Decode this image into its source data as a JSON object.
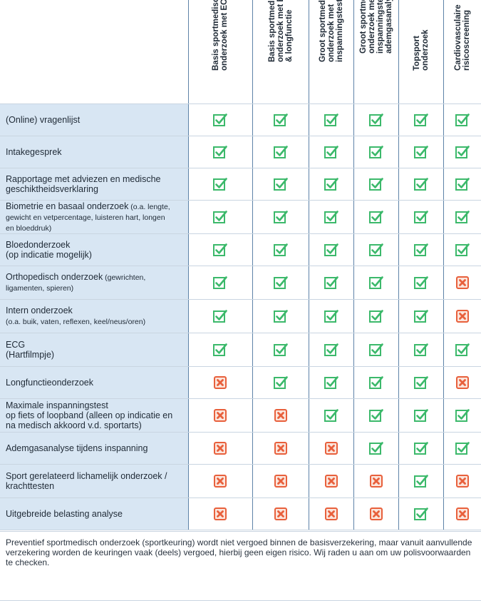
{
  "columns": [
    "Basis sportmedisch\nonderzoek met ECG",
    "Basis sportmedisch +\nonderzoek met ECG\n& longfunctie",
    "Groot sportmedisch\nonderzoek met\ninspanningstest",
    "Groot sportmedisch +\nonderzoek met\ninspanningstest en\nademgasanalyse",
    "Topsport\nonderzoek",
    "Cardiovasculaire\nrisicoscreening"
  ],
  "rows": [
    {
      "label": "(Online) vragenlijst",
      "sub": "",
      "values": [
        "yes",
        "yes",
        "yes",
        "yes",
        "yes",
        "yes"
      ]
    },
    {
      "label": "Intakegesprek",
      "sub": "",
      "values": [
        "yes",
        "yes",
        "yes",
        "yes",
        "yes",
        "yes"
      ]
    },
    {
      "label": "Rapportage met adviezen en medische\ngeschiktheidsverklaring",
      "sub": "",
      "values": [
        "yes",
        "yes",
        "yes",
        "yes",
        "yes",
        "yes"
      ]
    },
    {
      "label": "Biometrie en basaal onderzoek",
      "sub": " (o.a. lengte,\ngewicht en vetpercentage, luisteren hart, longen\nen bloeddruk)",
      "values": [
        "yes",
        "yes",
        "yes",
        "yes",
        "yes",
        "yes"
      ]
    },
    {
      "label": "Bloedonderzoek\n(op indicatie mogelijk)",
      "sub": "",
      "values": [
        "yes",
        "yes",
        "yes",
        "yes",
        "yes",
        "yes"
      ]
    },
    {
      "label": "Orthopedisch onderzoek",
      "sub": " (gewrichten,\nligamenten, spieren)",
      "values": [
        "yes",
        "yes",
        "yes",
        "yes",
        "yes",
        "no"
      ]
    },
    {
      "label": "Intern onderzoek",
      "sub": "\n(o.a. buik, vaten, reflexen, keel/neus/oren)",
      "values": [
        "yes",
        "yes",
        "yes",
        "yes",
        "yes",
        "no"
      ]
    },
    {
      "label": "ECG\n(Hartfilmpje)",
      "sub": "",
      "values": [
        "yes",
        "yes",
        "yes",
        "yes",
        "yes",
        "yes"
      ]
    },
    {
      "label": "Longfunctieonderzoek",
      "sub": "",
      "values": [
        "no",
        "yes",
        "yes",
        "yes",
        "yes",
        "no"
      ]
    },
    {
      "label": "Maximale inspanningstest\nop fiets of loopband (alleen op indicatie en\nna medisch akkoord v.d. sportarts)",
      "sub": "",
      "values": [
        "no",
        "no",
        "yes",
        "yes",
        "yes",
        "yes"
      ]
    },
    {
      "label": "Ademgasanalyse tijdens inspanning",
      "sub": "",
      "values": [
        "no",
        "no",
        "no",
        "yes",
        "yes",
        "yes"
      ]
    },
    {
      "label": "Sport gerelateerd lichamelijk onderzoek /\nkrachttesten",
      "sub": "",
      "values": [
        "no",
        "no",
        "no",
        "no",
        "yes",
        "no"
      ]
    },
    {
      "label": "Uitgebreide belasting analyse",
      "sub": "",
      "values": [
        "no",
        "no",
        "no",
        "no",
        "yes",
        "no"
      ]
    }
  ],
  "note": "Preventief sportmedisch onderzoek (sportkeuring) wordt niet vergoed binnen de basisverzekering, maar vanuit aanvullende verzekering worden de keuringen vaak (deels) vergoed, hierbij geen eigen risico. Wij raden u aan om uw polisvoorwaarden te checken.",
  "colors": {
    "check": "#3cb96b",
    "cross": "#e8603c",
    "label_bg": "#d8e6f3"
  }
}
